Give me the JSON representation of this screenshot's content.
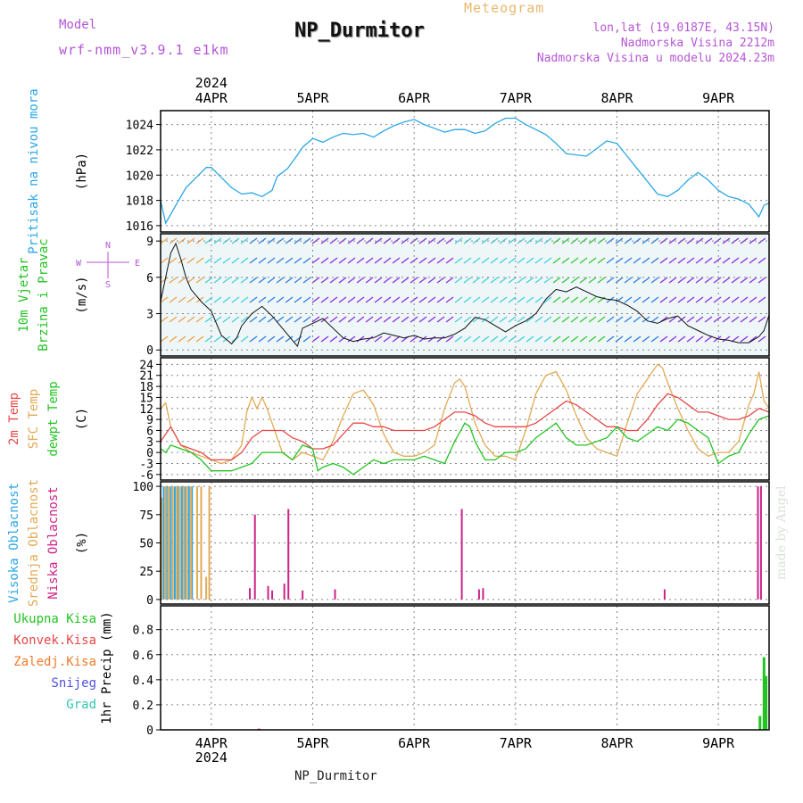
{
  "header": {
    "model_label": "Model",
    "model_name": "wrf-nmm_v3.9.1 e1km",
    "meteogram_label": "Meteogram",
    "station": "NP_Durmitor",
    "lonlat": "lon,lat (19.0187E, 43.15N)",
    "elevation": "Nadmorska Visina 2212m",
    "elevation_model": "Nadmorska Visina u modelu 2024.23m"
  },
  "footer": {
    "station": "NP_Durmitor",
    "made_by": "made by Angel"
  },
  "colors": {
    "pressure": "#2aa7e6",
    "speed": "#111111",
    "temp2m": "#e84848",
    "sfc": "#e2aa55",
    "dewpt": "#22c422",
    "high_cloud": "#2aa7e6",
    "mid_cloud": "#e2aa55",
    "low_cloud": "#cc2288",
    "precip_total": "#22c422",
    "precip_conv": "#e84848",
    "compass": "#b455d6"
  },
  "chart_data": {
    "type": "meteogram",
    "x_range": [
      3.5,
      9.5
    ],
    "top_axis": {
      "year": "2024",
      "ticks": [
        "4APR",
        "5APR",
        "6APR",
        "7APR",
        "8APR",
        "9APR"
      ],
      "positions": [
        4,
        5,
        6,
        7,
        8,
        9
      ]
    },
    "bottom_axis": {
      "year": "2024",
      "ticks": [
        "4APR",
        "5APR",
        "6APR",
        "7APR",
        "8APR",
        "9APR"
      ],
      "positions": [
        4,
        5,
        6,
        7,
        8,
        9
      ]
    },
    "panels": [
      {
        "id": "pressure",
        "ylabels": [
          {
            "text": "Pritisak na nivou mora",
            "color": "#2aa7e6"
          }
        ],
        "unit": "(hPa)",
        "ylim": [
          1015.5,
          1025.1
        ],
        "yticks": [
          1016,
          1018,
          1020,
          1022,
          1024
        ],
        "series": [
          {
            "type": "line",
            "color": "#2aa7e6",
            "x": [
              3.5,
              3.55,
              3.65,
              3.75,
              3.85,
              3.95,
              4.0,
              4.1,
              4.2,
              4.3,
              4.4,
              4.5,
              4.6,
              4.65,
              4.75,
              4.85,
              4.9,
              5.0,
              5.1,
              5.2,
              5.3,
              5.4,
              5.5,
              5.6,
              5.7,
              5.8,
              5.9,
              6.0,
              6.1,
              6.2,
              6.3,
              6.4,
              6.5,
              6.6,
              6.7,
              6.8,
              6.9,
              7.0,
              7.1,
              7.2,
              7.3,
              7.4,
              7.5,
              7.6,
              7.7,
              7.8,
              7.9,
              8.0,
              8.1,
              8.2,
              8.3,
              8.4,
              8.5,
              8.6,
              8.7,
              8.8,
              8.9,
              9.0,
              9.1,
              9.2,
              9.3,
              9.4,
              9.45,
              9.5
            ],
            "y": [
              1018.0,
              1016.2,
              1017.6,
              1019.0,
              1019.8,
              1020.6,
              1020.6,
              1019.8,
              1019.0,
              1018.5,
              1018.6,
              1018.3,
              1018.8,
              1019.9,
              1020.5,
              1021.6,
              1022.2,
              1022.9,
              1022.6,
              1023.0,
              1023.3,
              1023.2,
              1023.3,
              1023.0,
              1023.5,
              1023.9,
              1024.2,
              1024.4,
              1024.0,
              1023.7,
              1023.4,
              1023.6,
              1023.6,
              1023.3,
              1023.5,
              1024.1,
              1024.5,
              1024.5,
              1024.0,
              1023.6,
              1023.2,
              1022.5,
              1021.7,
              1021.6,
              1021.5,
              1022.1,
              1022.7,
              1022.5,
              1021.5,
              1020.5,
              1019.5,
              1018.5,
              1018.3,
              1018.8,
              1019.6,
              1020.2,
              1019.6,
              1018.8,
              1018.3,
              1018.1,
              1017.7,
              1016.7,
              1017.6,
              1017.8
            ]
          }
        ]
      },
      {
        "id": "wind",
        "ylabels": [
          {
            "text": "10m Vjetar",
            "color": "#22c422"
          },
          {
            "text": "Brzina i Pravac",
            "color": "#22c422"
          }
        ],
        "unit": "(m/s)",
        "ylim": [
          -0.5,
          9.6
        ],
        "yticks": [
          0,
          3,
          6,
          9
        ],
        "compass": {
          "n": "N",
          "s": "S",
          "e": "E",
          "w": "W"
        },
        "series": [
          {
            "type": "line",
            "color": "#111111",
            "x": [
              3.5,
              3.55,
              3.6,
              3.65,
              3.7,
              3.75,
              3.8,
              3.9,
              4.0,
              4.1,
              4.2,
              4.25,
              4.3,
              4.4,
              4.5,
              4.6,
              4.7,
              4.8,
              4.85,
              4.9,
              5.0,
              5.1,
              5.2,
              5.3,
              5.4,
              5.5,
              5.6,
              5.7,
              5.8,
              5.9,
              6.0,
              6.1,
              6.2,
              6.3,
              6.4,
              6.5,
              6.6,
              6.7,
              6.8,
              6.9,
              7.0,
              7.1,
              7.2,
              7.3,
              7.4,
              7.5,
              7.6,
              7.7,
              7.8,
              7.9,
              8.0,
              8.1,
              8.2,
              8.3,
              8.4,
              8.5,
              8.6,
              8.7,
              8.8,
              8.9,
              9.0,
              9.1,
              9.2,
              9.3,
              9.4,
              9.45,
              9.5
            ],
            "y": [
              4.0,
              6.0,
              8.0,
              8.8,
              7.5,
              6.0,
              5.0,
              4.0,
              3.2,
              1.2,
              0.5,
              1.0,
              2.0,
              3.0,
              3.6,
              2.8,
              1.8,
              0.8,
              0.3,
              1.8,
              2.2,
              2.6,
              1.8,
              1.0,
              0.7,
              0.9,
              1.0,
              1.4,
              1.2,
              1.0,
              1.2,
              0.9,
              1.0,
              1.0,
              1.3,
              1.8,
              2.7,
              2.5,
              2.0,
              1.5,
              2.0,
              2.4,
              3.0,
              4.2,
              5.0,
              4.8,
              5.2,
              4.8,
              4.4,
              4.2,
              4.1,
              3.7,
              3.2,
              2.4,
              2.2,
              2.6,
              2.8,
              2.0,
              1.6,
              1.2,
              0.9,
              0.8,
              0.6,
              0.6,
              1.1,
              1.6,
              2.9
            ]
          }
        ]
      },
      {
        "id": "temperature",
        "ylabels": [
          {
            "text": "2m Temp",
            "color": "#e84848"
          },
          {
            "text": "SFC Temp",
            "color": "#e2aa55"
          },
          {
            "text": "dewpt Temp",
            "color": "#22c422"
          }
        ],
        "unit": "(C)",
        "ylim": [
          -7.5,
          25.8
        ],
        "yticks": [
          -6,
          -3,
          0,
          3,
          6,
          9,
          12,
          15,
          18,
          21,
          24
        ],
        "series": [
          {
            "type": "line",
            "color": "#e2aa55",
            "name": "SFC Temp",
            "x": [
              3.5,
              3.55,
              3.6,
              3.7,
              3.8,
              3.9,
              4.0,
              4.1,
              4.2,
              4.3,
              4.35,
              4.4,
              4.45,
              4.5,
              4.55,
              4.6,
              4.7,
              4.8,
              4.9,
              5.0,
              5.1,
              5.2,
              5.3,
              5.4,
              5.5,
              5.6,
              5.7,
              5.8,
              5.9,
              6.0,
              6.1,
              6.2,
              6.3,
              6.4,
              6.45,
              6.5,
              6.6,
              6.7,
              6.8,
              6.9,
              7.0,
              7.1,
              7.2,
              7.3,
              7.4,
              7.5,
              7.6,
              7.7,
              7.8,
              7.9,
              8.0,
              8.1,
              8.2,
              8.3,
              8.4,
              8.45,
              8.5,
              8.6,
              8.7,
              8.8,
              8.9,
              9.0,
              9.1,
              9.2,
              9.3,
              9.35,
              9.4,
              9.45,
              9.5
            ],
            "y": [
              12,
              13.5,
              7,
              2,
              0,
              -1,
              -2,
              -3,
              -2,
              2,
              11,
              15,
              12,
              15,
              12,
              8,
              0,
              -2,
              0,
              -1,
              -2,
              3,
              10,
              16,
              17,
              13,
              5,
              0,
              -1,
              -1,
              0,
              2,
              12,
              19,
              20,
              18,
              8,
              2,
              -1,
              -1,
              -2,
              6,
              16,
              21,
              22,
              17,
              10,
              4,
              1,
              0,
              -1,
              8,
              16,
              20,
              24,
              23,
              19,
              12,
              6,
              1,
              -1,
              0,
              0,
              3,
              13,
              16,
              22,
              14,
              12
            ]
          },
          {
            "type": "line",
            "color": "#e84848",
            "name": "2m Temp",
            "x": [
              3.5,
              3.6,
              3.7,
              3.8,
              3.9,
              4.0,
              4.1,
              4.2,
              4.3,
              4.4,
              4.5,
              4.6,
              4.7,
              4.8,
              4.9,
              5.0,
              5.1,
              5.2,
              5.3,
              5.4,
              5.5,
              5.6,
              5.7,
              5.8,
              5.9,
              6.0,
              6.1,
              6.2,
              6.3,
              6.4,
              6.5,
              6.6,
              6.7,
              6.8,
              6.9,
              7.0,
              7.1,
              7.2,
              7.3,
              7.4,
              7.5,
              7.6,
              7.7,
              7.8,
              7.9,
              8.0,
              8.1,
              8.2,
              8.3,
              8.4,
              8.5,
              8.6,
              8.7,
              8.8,
              8.9,
              9.0,
              9.1,
              9.2,
              9.3,
              9.4,
              9.5
            ],
            "y": [
              3,
              7,
              2,
              1,
              0,
              -2,
              -2,
              -2,
              0,
              4,
              6,
              6,
              6,
              4,
              3,
              1,
              1,
              2,
              5,
              8,
              8,
              7,
              7,
              6,
              6,
              6,
              6,
              7,
              9,
              11,
              11,
              10,
              8,
              7,
              7,
              7,
              7,
              8,
              10,
              12,
              14,
              13,
              11,
              9,
              7,
              7,
              6,
              6,
              9,
              13,
              16,
              15,
              13,
              11,
              11,
              10,
              9,
              9,
              10,
              12,
              11
            ]
          },
          {
            "type": "line",
            "color": "#22c422",
            "name": "dewpt Temp",
            "x": [
              3.5,
              3.55,
              3.6,
              3.7,
              3.8,
              3.9,
              4.0,
              4.1,
              4.2,
              4.3,
              4.4,
              4.5,
              4.6,
              4.7,
              4.8,
              4.9,
              5.0,
              5.05,
              5.1,
              5.2,
              5.3,
              5.4,
              5.5,
              5.6,
              5.7,
              5.8,
              5.9,
              6.0,
              6.1,
              6.2,
              6.3,
              6.4,
              6.5,
              6.55,
              6.6,
              6.7,
              6.8,
              6.9,
              7.0,
              7.1,
              7.2,
              7.3,
              7.4,
              7.5,
              7.6,
              7.7,
              7.8,
              7.9,
              8.0,
              8.1,
              8.2,
              8.3,
              8.4,
              8.5,
              8.6,
              8.7,
              8.8,
              8.9,
              9.0,
              9.1,
              9.2,
              9.3,
              9.4,
              9.5
            ],
            "y": [
              1,
              0,
              2,
              1,
              0,
              -2,
              -5,
              -5,
              -5,
              -4,
              -3,
              0,
              0,
              0,
              -2,
              2,
              1,
              -5,
              -4,
              -3,
              -4,
              -6,
              -4,
              -2,
              -3,
              -2,
              -2,
              -2,
              -1,
              -2,
              -3,
              3,
              8,
              7,
              3,
              -2,
              -2,
              0,
              0,
              1,
              4,
              6,
              8,
              4,
              2,
              2,
              3,
              4,
              7,
              4,
              3,
              5,
              7,
              6,
              9,
              8,
              6,
              4,
              -3,
              -1,
              0,
              5,
              9,
              10
            ]
          }
        ]
      },
      {
        "id": "cloud",
        "ylabels": [
          {
            "text": "Visoka Oblacnost",
            "color": "#2aa7e6"
          },
          {
            "text": "Srednja Oblacnost",
            "color": "#e2aa55"
          },
          {
            "text": "Niska Oblacnost",
            "color": "#cc2288"
          }
        ],
        "unit": "(%)",
        "ylim": [
          -4,
          104
        ],
        "yticks": [
          0,
          25,
          50,
          75,
          100
        ],
        "bars": [
          {
            "name": "Visoka Oblacnost",
            "color": "#2aa7e6",
            "x": [
              3.53,
              3.56,
              3.6,
              3.64,
              3.67,
              3.71,
              3.74,
              3.78,
              3.81
            ],
            "values": [
              100,
              100,
              100,
              100,
              100,
              100,
              100,
              100,
              100
            ]
          },
          {
            "name": "Srednja Oblacnost",
            "color": "#e2aa55",
            "x": [
              3.51,
              3.55,
              3.58,
              3.62,
              3.66,
              3.69,
              3.73,
              3.76,
              3.8,
              3.86,
              3.9,
              3.95,
              3.98
            ],
            "values": [
              90,
              100,
              100,
              100,
              100,
              100,
              100,
              100,
              100,
              100,
              100,
              20,
              100
            ]
          },
          {
            "name": "Niska Oblacnost",
            "color": "#cc2288",
            "x": [
              4.38,
              4.43,
              4.56,
              4.6,
              4.72,
              4.76,
              4.9,
              5.22,
              6.47,
              6.64,
              6.68,
              8.47,
              9.39,
              9.42
            ],
            "values": [
              10,
              75,
              12,
              8,
              14,
              80,
              8,
              9,
              80,
              9,
              10,
              9,
              100,
              100
            ]
          }
        ]
      },
      {
        "id": "precip",
        "ylabels": [
          {
            "text": "Ukupna Kisa",
            "color": "#22c422"
          },
          {
            "text": "Konvek.Kisa",
            "color": "#e84848"
          },
          {
            "text": "Zaledj.Kisa",
            "color": "#f07a2a"
          },
          {
            "text": "Snijeg",
            "color": "#5050e0"
          },
          {
            "text": "Grad",
            "color": "#33c6b0"
          }
        ],
        "unit": "1hr Precip (mm)",
        "ylim": [
          0,
          0.99
        ],
        "yticks": [
          0,
          0.2,
          0.4,
          0.6,
          0.8
        ],
        "bars": [
          {
            "name": "Ukupna Kisa",
            "color": "#22c422",
            "x": [
              9.41,
              9.45,
              9.47
            ],
            "values": [
              0.11,
              0.58,
              0.43
            ]
          },
          {
            "name": "Konvek.Kisa",
            "color": "#e84848",
            "x": [
              4.47
            ],
            "values": [
              0.01
            ]
          }
        ]
      }
    ]
  }
}
